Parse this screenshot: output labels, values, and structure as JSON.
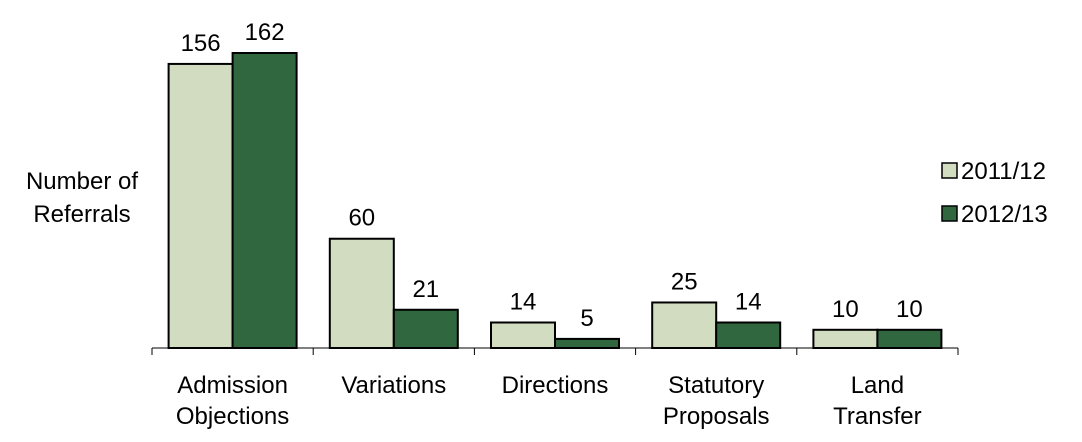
{
  "chart_data": {
    "type": "bar",
    "title": "",
    "ylabel": "Number of Referrals",
    "ylabel_lines": [
      "Number of",
      "Referrals"
    ],
    "xlabel": "",
    "categories": [
      [
        "Admission",
        "Objections"
      ],
      [
        "Variations"
      ],
      [
        "Directions"
      ],
      [
        "Statutory",
        "Proposals"
      ],
      [
        "Land",
        "Transfer"
      ]
    ],
    "series": [
      {
        "name": "2011/12",
        "color": "#d1dcc0",
        "values": [
          156,
          60,
          14,
          25,
          10
        ]
      },
      {
        "name": "2012/13",
        "color": "#31673f",
        "values": [
          162,
          21,
          5,
          14,
          10
        ]
      }
    ],
    "ylim": [
      0,
      162
    ],
    "grid": false,
    "data_labels": true,
    "legend_position": "right"
  }
}
